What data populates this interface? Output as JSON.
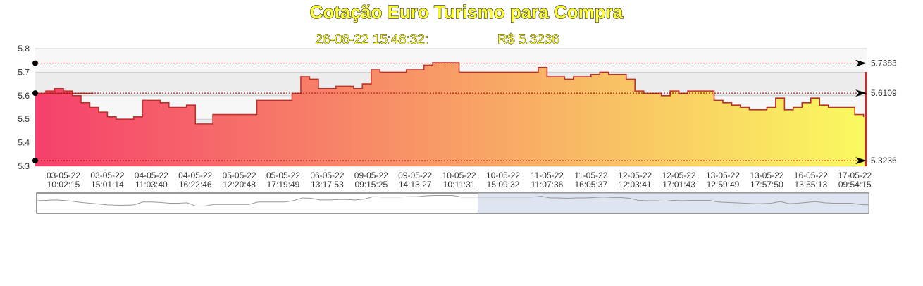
{
  "chart_data": {
    "type": "area",
    "title": "Cotação Euro Turismo para Compra",
    "subtitle": [
      "26-08-22 15:48:32:",
      "R$ 5.3236"
    ],
    "series": [
      {
        "color": "#c0302a",
        "gradient": [
          "#f5406c",
          "#fafa60"
        ],
        "values": [
          5.61,
          5.62,
          5.63,
          5.62,
          5.6,
          5.57,
          5.55,
          5.53,
          5.51,
          5.5,
          5.5,
          5.51,
          5.58,
          5.58,
          5.57,
          5.55,
          5.55,
          5.56,
          5.48,
          5.48,
          5.52,
          5.52,
          5.52,
          5.52,
          5.52,
          5.58,
          5.58,
          5.58,
          5.58,
          5.61,
          5.68,
          5.67,
          5.63,
          5.63,
          5.64,
          5.64,
          5.63,
          5.65,
          5.71,
          5.7,
          5.7,
          5.7,
          5.71,
          5.71,
          5.73,
          5.74,
          5.74,
          5.74,
          5.7,
          5.7,
          5.7,
          5.7,
          5.7,
          5.7,
          5.7,
          5.7,
          5.7,
          5.72,
          5.68,
          5.68,
          5.67,
          5.68,
          5.68,
          5.69,
          5.7,
          5.69,
          5.69,
          5.67,
          5.62,
          5.61,
          5.61,
          5.6,
          5.62,
          5.61,
          5.62,
          5.62,
          5.62,
          5.58,
          5.57,
          5.56,
          5.55,
          5.54,
          5.54,
          5.55,
          5.59,
          5.54,
          5.55,
          5.57,
          5.59,
          5.56,
          5.55,
          5.55,
          5.55,
          5.52,
          5.51
        ]
      }
    ],
    "categories": [
      null,
      null,
      null,
      [
        "03-05-22",
        "10:02:15"
      ],
      null,
      null,
      null,
      null,
      [
        "03-05-22",
        "15:01:14"
      ],
      null,
      null,
      null,
      null,
      [
        "04-05-22",
        "11:03:40"
      ],
      null,
      null,
      null,
      null,
      [
        "04-05-22",
        "16:22:46"
      ],
      null,
      null,
      null,
      null,
      [
        "05-05-22",
        "12:20:48"
      ],
      null,
      null,
      null,
      null,
      [
        "05-05-22",
        "17:19:49"
      ],
      null,
      null,
      null,
      null,
      [
        "06-05-22",
        "13:17:53"
      ],
      null,
      null,
      null,
      null,
      [
        "09-05-22",
        "09:15:25"
      ],
      null,
      null,
      null,
      null,
      [
        "09-05-22",
        "14:13:27"
      ],
      null,
      null,
      null,
      null,
      [
        "10-05-22",
        "10:11:31"
      ],
      null,
      null,
      null,
      null,
      [
        "10-05-22",
        "15:09:32"
      ],
      null,
      null,
      null,
      null,
      [
        "11-05-22",
        "11:07:36"
      ],
      null,
      null,
      null,
      null,
      [
        "11-05-22",
        "16:05:37"
      ],
      null,
      null,
      null,
      null,
      [
        "12-05-22",
        "12:03:41"
      ],
      null,
      null,
      null,
      null,
      [
        "12-05-22",
        "17:01:43"
      ],
      null,
      null,
      null,
      null,
      [
        "13-05-22",
        "12:59:49"
      ],
      null,
      null,
      null,
      null,
      [
        "13-05-22",
        "17:57:50"
      ],
      null,
      null,
      null,
      null,
      [
        "16-05-22",
        "13:55:13"
      ],
      null,
      null,
      null,
      null,
      [
        "17-05-22",
        "09:54:15"
      ],
      null
    ],
    "ylim": [
      5.3,
      5.8
    ],
    "yticks": [
      5.3,
      5.4,
      5.5,
      5.6,
      5.7,
      5.8
    ],
    "reference_lines": [
      5.7383,
      5.6109,
      5.3236
    ]
  }
}
